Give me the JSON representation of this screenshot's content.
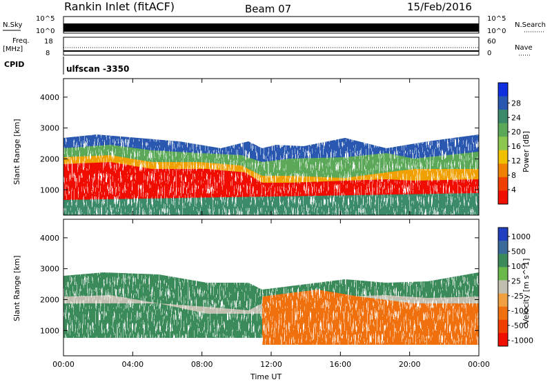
{
  "header": {
    "title": "Rankin Inlet (fitACF)",
    "beam": "Beam 07",
    "date": "15/Feb/2016"
  },
  "panels": {
    "nsky": {
      "label": "N.Sky",
      "top_tick": "10^5",
      "bottom_tick": "10^0",
      "right_label": "N.Search",
      "right_top_tick": "10^5",
      "right_bottom_tick": "10^0"
    },
    "freq": {
      "label_line1": "Freq.",
      "label_line2": "[MHz]",
      "top_tick": "18",
      "bottom_tick": "8",
      "right_label": "Nave",
      "right_top_tick": "60",
      "right_bottom_tick": "0"
    },
    "cpid": {
      "label": "CPID",
      "value": "ulfscan -3350"
    }
  },
  "chart_data": [
    {
      "type": "heatmap",
      "name": "power",
      "ylabel": "Slant Range [km]",
      "xlabel": "Time UT",
      "x_ticks": [
        "00:00",
        "04:00",
        "08:00",
        "12:00",
        "16:00",
        "20:00",
        "00:00"
      ],
      "y_ticks": [
        1000,
        2000,
        3000,
        4000
      ],
      "ylim": [
        180,
        4600
      ],
      "xlim_hours": [
        0,
        24
      ],
      "colorbar": {
        "label": "Power [dB]",
        "ticks": [
          "4",
          "8",
          "12",
          "16",
          "20",
          "24",
          "28"
        ],
        "colors": [
          "#1030e0",
          "#2a58b0",
          "#3a8a6a",
          "#5aa858",
          "#8cc850",
          "#f0c000",
          "#f08000",
          "#f04000",
          "#f01000"
        ]
      }
    },
    {
      "type": "heatmap",
      "name": "velocity",
      "ylabel": "Slant Range [km]",
      "xlabel": "Time UT",
      "x_ticks": [
        "00:00",
        "04:00",
        "08:00",
        "12:00",
        "16:00",
        "20:00",
        "00:00"
      ],
      "y_ticks": [
        1000,
        2000,
        3000,
        4000
      ],
      "ylim": [
        180,
        4600
      ],
      "xlim_hours": [
        0,
        24
      ],
      "colorbar": {
        "label": "Velocity [m s^-1]",
        "ticks": [
          "1000",
          "500",
          "100",
          "25",
          "-25",
          "-100",
          "-500",
          "-1000"
        ],
        "colors": [
          "#2040c0",
          "#3a6a9a",
          "#3a8a5a",
          "#6ab84a",
          "#c0c0b0",
          "#f0a040",
          "#f07010",
          "#f04000",
          "#f01000"
        ]
      }
    }
  ]
}
